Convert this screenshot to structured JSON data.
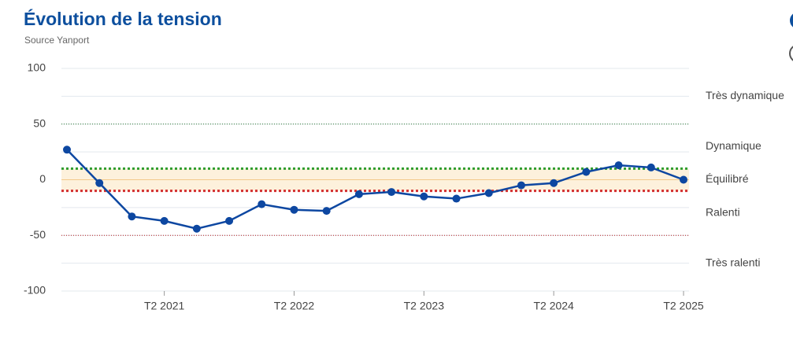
{
  "chart_data": {
    "type": "line",
    "title": "Évolution de la tension",
    "subtitle": "Source Yanport",
    "categories": [
      null,
      null,
      null,
      "T2 2021",
      null,
      null,
      null,
      "T2 2022",
      null,
      null,
      null,
      "T2 2023",
      null,
      null,
      null,
      "T2 2024",
      null,
      null,
      null,
      "T2 2025"
    ],
    "series": [
      {
        "color": "#0d47a1",
        "values": [
          27,
          -3,
          -33,
          -37,
          -44,
          -37,
          -22,
          -27,
          -28,
          -13,
          -11,
          -15,
          -17,
          -12,
          -5,
          -3,
          7,
          13,
          11,
          0
        ]
      }
    ],
    "ylim": [
      -100,
      100
    ],
    "yticks": [
      -100,
      -50,
      0,
      50,
      100
    ],
    "minor_yticks": [
      -75,
      -25,
      25,
      75
    ],
    "grid": true,
    "reference_lines": [
      {
        "value": 50,
        "color": "#2e7d32",
        "width": 1
      },
      {
        "value": 10,
        "color": "#2e9d2e",
        "width": 3
      },
      {
        "value": -10,
        "color": "#d32f2f",
        "width": 3
      },
      {
        "value": -50,
        "color": "#b71c1c",
        "width": 1
      }
    ],
    "zones": [
      {
        "label": "Très dynamique",
        "from": 50,
        "to": 100
      },
      {
        "label": "Dynamique",
        "from": 10,
        "to": 50
      },
      {
        "label": "Équilibré",
        "from": -10,
        "to": 10,
        "color": "#fdf1dc"
      },
      {
        "label": "Ralenti",
        "from": -50,
        "to": -10
      },
      {
        "label": "Très ralenti",
        "from": -100,
        "to": -50
      }
    ]
  }
}
